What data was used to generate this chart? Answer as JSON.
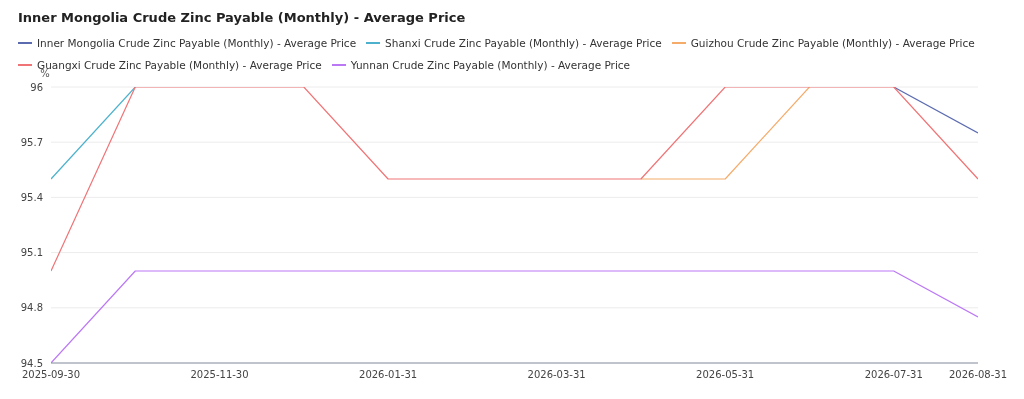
{
  "chart_data": {
    "type": "line",
    "title": "Inner Mongolia Crude Zinc Payable (Monthly) - Average Price",
    "ylabel": "%",
    "categories": [
      "2025-09-30",
      null,
      "2025-11-30",
      null,
      "2026-01-31",
      null,
      "2026-03-31",
      null,
      "2026-05-31",
      null,
      "2026-07-31",
      "2026-08-31"
    ],
    "series": [
      {
        "name": "Inner Mongolia Crude Zinc Payable (Monthly) - Average Price",
        "color": "#5b6bb0",
        "values": [
          null,
          null,
          null,
          null,
          null,
          null,
          null,
          null,
          null,
          null,
          96,
          95.75
        ]
      },
      {
        "name": "Shanxi Crude Zinc Payable (Monthly) - Average Price",
        "color": "#4bb1cc",
        "values": [
          95.5,
          96,
          null,
          null,
          null,
          null,
          null,
          null,
          null,
          null,
          null,
          null
        ]
      },
      {
        "name": "Guizhou Crude Zinc Payable (Monthly) - Average Price",
        "color": "#f5ab6a",
        "values": [
          null,
          null,
          null,
          null,
          null,
          null,
          null,
          95.5,
          95.5,
          96,
          null,
          null
        ]
      },
      {
        "name": "Guangxi Crude Zinc Payable (Monthly) - Average Price",
        "color": "#f07476",
        "values": [
          95,
          96,
          96,
          96,
          95.5,
          95.5,
          95.5,
          95.5,
          96,
          96,
          96,
          95.5
        ]
      },
      {
        "name": "Yunnan Crude Zinc Payable (Monthly) - Average Price",
        "color": "#bb78f5",
        "values": [
          94.5,
          95,
          95,
          95,
          95,
          95,
          95,
          95,
          95,
          95,
          95,
          94.75
        ]
      }
    ],
    "ylim": [
      94.5,
      96
    ],
    "yticks": [
      94.5,
      94.8,
      95.1,
      95.4,
      95.7,
      96
    ],
    "grid": "y",
    "legend": "top left",
    "marker": "none",
    "line_style": "solid"
  }
}
